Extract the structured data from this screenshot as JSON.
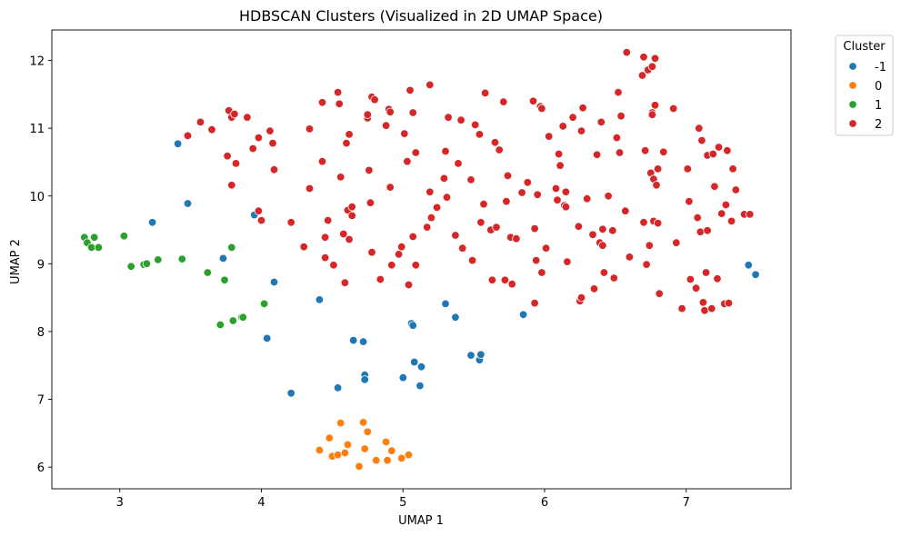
{
  "chart_data": {
    "type": "scatter",
    "title": "HDBSCAN Clusters (Visualized in 2D UMAP Space)",
    "xlabel": "UMAP 1",
    "ylabel": "UMAP 2",
    "xlim": [
      2.52,
      7.74
    ],
    "ylim": [
      5.68,
      12.45
    ],
    "xticks": [
      3,
      4,
      5,
      6,
      7
    ],
    "yticks": [
      6,
      7,
      8,
      9,
      10,
      11,
      12
    ],
    "grid": false,
    "legend": {
      "title": "Cluster",
      "placement": "upper-right-outside"
    },
    "series": [
      {
        "name": "-1",
        "color": "#1f77b4",
        "points": [
          [
            3.41,
            10.77
          ],
          [
            3.48,
            9.89
          ],
          [
            3.23,
            9.61
          ],
          [
            3.73,
            9.08
          ],
          [
            3.95,
            9.72
          ],
          [
            4.09,
            8.73
          ],
          [
            4.41,
            8.47
          ],
          [
            4.04,
            7.9
          ],
          [
            4.21,
            7.09
          ],
          [
            4.54,
            7.17
          ],
          [
            4.65,
            7.87
          ],
          [
            4.72,
            7.85
          ],
          [
            4.73,
            7.36
          ],
          [
            4.73,
            7.29
          ],
          [
            5.0,
            7.32
          ],
          [
            5.06,
            8.12
          ],
          [
            5.07,
            8.09
          ],
          [
            5.08,
            7.55
          ],
          [
            5.12,
            7.2
          ],
          [
            5.13,
            7.48
          ],
          [
            5.3,
            8.41
          ],
          [
            5.37,
            8.21
          ],
          [
            5.48,
            7.65
          ],
          [
            5.54,
            7.58
          ],
          [
            5.55,
            7.66
          ],
          [
            5.85,
            8.25
          ],
          [
            7.44,
            8.98
          ],
          [
            7.49,
            8.84
          ]
        ]
      },
      {
        "name": "0",
        "color": "#ff7f0e",
        "points": [
          [
            4.41,
            6.25
          ],
          [
            4.48,
            6.43
          ],
          [
            4.5,
            6.16
          ],
          [
            4.54,
            6.18
          ],
          [
            4.56,
            6.65
          ],
          [
            4.59,
            6.21
          ],
          [
            4.61,
            6.33
          ],
          [
            4.69,
            6.01
          ],
          [
            4.72,
            6.66
          ],
          [
            4.73,
            6.27
          ],
          [
            4.75,
            6.52
          ],
          [
            4.81,
            6.1
          ],
          [
            4.88,
            6.37
          ],
          [
            4.89,
            6.1
          ],
          [
            4.92,
            6.24
          ],
          [
            4.99,
            6.13
          ],
          [
            5.04,
            6.18
          ]
        ]
      },
      {
        "name": "1",
        "color": "#2ca02c",
        "points": [
          [
            2.75,
            9.39
          ],
          [
            2.77,
            9.31
          ],
          [
            2.8,
            9.24
          ],
          [
            2.82,
            9.39
          ],
          [
            2.85,
            9.24
          ],
          [
            3.03,
            9.41
          ],
          [
            3.08,
            8.96
          ],
          [
            3.17,
            8.99
          ],
          [
            3.19,
            9.0
          ],
          [
            3.27,
            9.06
          ],
          [
            3.44,
            9.07
          ],
          [
            3.62,
            8.87
          ],
          [
            3.71,
            8.1
          ],
          [
            3.74,
            8.76
          ],
          [
            3.79,
            9.24
          ],
          [
            3.8,
            8.16
          ],
          [
            3.86,
            8.21
          ],
          [
            3.87,
            8.21
          ],
          [
            4.02,
            8.41
          ]
        ]
      },
      {
        "name": "2",
        "color": "#d62728",
        "points": [
          [
            3.48,
            10.89
          ],
          [
            3.57,
            11.09
          ],
          [
            3.65,
            10.98
          ],
          [
            3.76,
            10.59
          ],
          [
            3.77,
            11.26
          ],
          [
            3.79,
            11.16
          ],
          [
            3.81,
            11.21
          ],
          [
            3.79,
            10.16
          ],
          [
            3.82,
            10.48
          ],
          [
            3.9,
            11.16
          ],
          [
            3.94,
            10.7
          ],
          [
            3.98,
            10.86
          ],
          [
            3.98,
            9.78
          ],
          [
            4.0,
            9.64
          ],
          [
            4.06,
            10.96
          ],
          [
            4.08,
            10.78
          ],
          [
            4.09,
            10.39
          ],
          [
            4.21,
            9.61
          ],
          [
            4.3,
            9.25
          ],
          [
            4.34,
            10.11
          ],
          [
            4.34,
            10.99
          ],
          [
            4.43,
            11.38
          ],
          [
            4.43,
            10.51
          ],
          [
            4.45,
            9.09
          ],
          [
            4.45,
            9.39
          ],
          [
            4.47,
            9.64
          ],
          [
            4.51,
            8.98
          ],
          [
            4.54,
            11.53
          ],
          [
            4.55,
            11.36
          ],
          [
            4.56,
            10.28
          ],
          [
            4.58,
            9.44
          ],
          [
            4.59,
            8.72
          ],
          [
            4.6,
            10.78
          ],
          [
            4.61,
            9.79
          ],
          [
            4.62,
            10.91
          ],
          [
            4.62,
            9.36
          ],
          [
            4.64,
            9.84
          ],
          [
            4.64,
            9.71
          ],
          [
            4.75,
            11.15
          ],
          [
            4.75,
            11.2
          ],
          [
            4.76,
            10.38
          ],
          [
            4.77,
            9.9
          ],
          [
            4.78,
            9.17
          ],
          [
            4.78,
            11.46
          ],
          [
            4.8,
            11.42
          ],
          [
            4.84,
            8.77
          ],
          [
            4.88,
            11.04
          ],
          [
            4.9,
            11.28
          ],
          [
            4.91,
            11.24
          ],
          [
            4.92,
            8.98
          ],
          [
            4.91,
            10.13
          ],
          [
            4.97,
            9.14
          ],
          [
            4.99,
            9.25
          ],
          [
            5.01,
            10.92
          ],
          [
            5.03,
            10.51
          ],
          [
            5.04,
            8.69
          ],
          [
            5.05,
            11.56
          ],
          [
            5.07,
            9.4
          ],
          [
            5.07,
            11.23
          ],
          [
            5.09,
            10.64
          ],
          [
            5.09,
            8.98
          ],
          [
            5.17,
            9.54
          ],
          [
            5.19,
            11.64
          ],
          [
            5.19,
            10.06
          ],
          [
            5.2,
            9.68
          ],
          [
            5.24,
            9.83
          ],
          [
            5.29,
            10.26
          ],
          [
            5.3,
            10.66
          ],
          [
            5.31,
            9.98
          ],
          [
            5.32,
            11.16
          ],
          [
            5.37,
            9.42
          ],
          [
            5.39,
            10.48
          ],
          [
            5.41,
            11.12
          ],
          [
            5.42,
            9.23
          ],
          [
            5.48,
            10.24
          ],
          [
            5.49,
            9.05
          ],
          [
            5.51,
            11.05
          ],
          [
            5.54,
            10.91
          ],
          [
            5.55,
            9.61
          ],
          [
            5.58,
            11.52
          ],
          [
            5.57,
            9.88
          ],
          [
            5.62,
            9.5
          ],
          [
            5.63,
            8.76
          ],
          [
            5.65,
            10.79
          ],
          [
            5.66,
            9.54
          ],
          [
            5.68,
            10.68
          ],
          [
            5.71,
            11.39
          ],
          [
            5.72,
            8.76
          ],
          [
            5.73,
            9.92
          ],
          [
            5.74,
            10.3
          ],
          [
            5.76,
            9.39
          ],
          [
            5.77,
            8.7
          ],
          [
            5.8,
            9.37
          ],
          [
            5.84,
            10.05
          ],
          [
            5.88,
            10.2
          ],
          [
            5.92,
            11.4
          ],
          [
            5.93,
            9.52
          ],
          [
            5.94,
            9.05
          ],
          [
            5.95,
            10.02
          ],
          [
            5.97,
            11.32
          ],
          [
            5.98,
            11.29
          ],
          [
            5.98,
            8.87
          ],
          [
            6.01,
            9.23
          ],
          [
            6.03,
            10.88
          ],
          [
            5.93,
            8.42
          ],
          [
            6.08,
            10.11
          ],
          [
            6.09,
            9.94
          ],
          [
            6.1,
            10.62
          ],
          [
            6.11,
            10.45
          ],
          [
            6.13,
            11.03
          ],
          [
            6.14,
            9.86
          ],
          [
            6.15,
            9.84
          ],
          [
            6.15,
            10.06
          ],
          [
            6.16,
            9.03
          ],
          [
            6.2,
            11.16
          ],
          [
            6.24,
            9.55
          ],
          [
            6.25,
            8.45
          ],
          [
            6.26,
            8.5
          ],
          [
            6.26,
            10.96
          ],
          [
            6.27,
            11.3
          ],
          [
            6.3,
            9.96
          ],
          [
            6.34,
            9.43
          ],
          [
            6.35,
            8.63
          ],
          [
            6.37,
            10.61
          ],
          [
            6.39,
            9.31
          ],
          [
            6.4,
            11.09
          ],
          [
            6.41,
            9.27
          ],
          [
            6.41,
            9.51
          ],
          [
            6.42,
            8.87
          ],
          [
            6.45,
            10.0
          ],
          [
            6.48,
            9.49
          ],
          [
            6.49,
            8.79
          ],
          [
            6.51,
            10.86
          ],
          [
            6.52,
            11.53
          ],
          [
            6.53,
            10.64
          ],
          [
            6.54,
            11.18
          ],
          [
            6.57,
            9.78
          ],
          [
            6.58,
            12.12
          ],
          [
            6.6,
            9.1
          ],
          [
            6.69,
            11.78
          ],
          [
            6.7,
            12.05
          ],
          [
            6.7,
            9.61
          ],
          [
            6.71,
            10.67
          ],
          [
            6.72,
            8.99
          ],
          [
            6.73,
            11.86
          ],
          [
            6.74,
            9.27
          ],
          [
            6.76,
            11.91
          ],
          [
            6.75,
            10.34
          ],
          [
            6.76,
            11.23
          ],
          [
            6.76,
            11.2
          ],
          [
            6.77,
            9.63
          ],
          [
            6.78,
            12.03
          ],
          [
            6.78,
            11.34
          ],
          [
            6.77,
            10.25
          ],
          [
            6.79,
            10.16
          ],
          [
            6.8,
            10.4
          ],
          [
            6.8,
            9.6
          ],
          [
            6.81,
            8.56
          ],
          [
            6.84,
            10.65
          ],
          [
            6.91,
            11.29
          ],
          [
            6.93,
            9.31
          ],
          [
            6.97,
            8.34
          ],
          [
            7.01,
            10.4
          ],
          [
            7.02,
            9.92
          ],
          [
            7.03,
            8.77
          ],
          [
            7.07,
            8.64
          ],
          [
            7.09,
            11.0
          ],
          [
            7.08,
            9.68
          ],
          [
            7.1,
            9.47
          ],
          [
            7.11,
            10.82
          ],
          [
            7.12,
            8.43
          ],
          [
            7.13,
            8.31
          ],
          [
            7.14,
            8.87
          ],
          [
            7.15,
            9.49
          ],
          [
            7.15,
            10.6
          ],
          [
            7.18,
            8.34
          ],
          [
            7.2,
            10.14
          ],
          [
            7.22,
            8.78
          ],
          [
            7.23,
            10.72
          ],
          [
            7.25,
            9.74
          ],
          [
            7.27,
            8.41
          ],
          [
            7.29,
            10.67
          ],
          [
            7.3,
            8.42
          ],
          [
            7.32,
            9.63
          ],
          [
            7.33,
            10.4
          ],
          [
            7.35,
            10.09
          ],
          [
            7.41,
            9.73
          ],
          [
            7.45,
            9.73
          ],
          [
            7.28,
            9.87
          ],
          [
            7.19,
            10.62
          ]
        ]
      }
    ]
  }
}
